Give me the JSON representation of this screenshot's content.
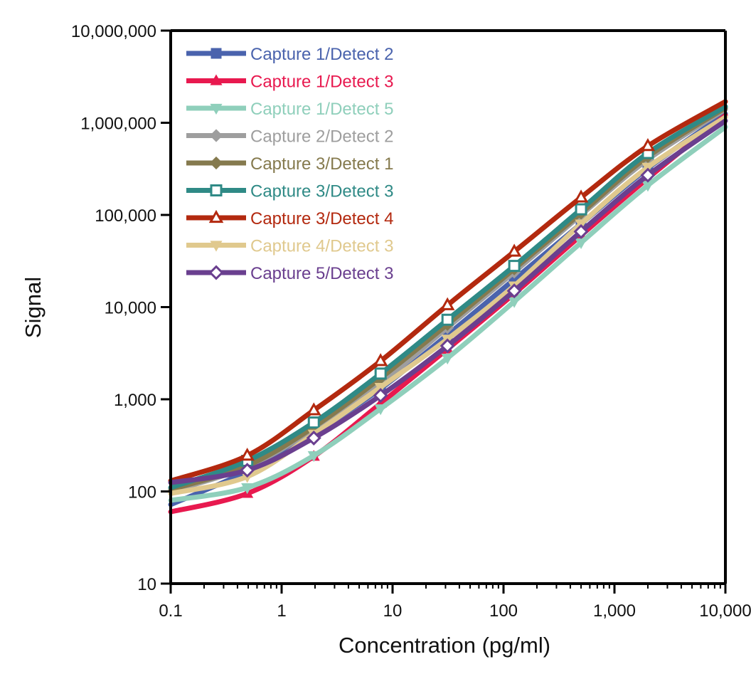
{
  "chart_data": {
    "type": "line",
    "xlabel": "Concentration (pg/ml)",
    "ylabel": "Signal",
    "xscale": "log",
    "yscale": "log",
    "xlim": [
      0.1,
      10000
    ],
    "ylim": [
      10,
      10000000
    ],
    "x_ticks": [
      {
        "value": 0.1,
        "label": "0.1"
      },
      {
        "value": 1,
        "label": "1"
      },
      {
        "value": 10,
        "label": "10"
      },
      {
        "value": 100,
        "label": "100"
      },
      {
        "value": 1000,
        "label": "1,000"
      },
      {
        "value": 10000,
        "label": "10,000"
      }
    ],
    "y_ticks": [
      {
        "value": 10,
        "label": "10"
      },
      {
        "value": 100,
        "label": "100"
      },
      {
        "value": 1000,
        "label": "1,000"
      },
      {
        "value": 10000,
        "label": "10,000"
      },
      {
        "value": 100000,
        "label": "100,000"
      },
      {
        "value": 1000000,
        "label": "1,000,000"
      },
      {
        "value": 10000000,
        "label": "10,000,000"
      }
    ],
    "legend_position": "top-left",
    "grid": false,
    "x": [
      0.1,
      0.49,
      1.95,
      7.8,
      31.25,
      125,
      500,
      2000,
      10000
    ],
    "series": [
      {
        "name": "Capture 1/Detect 2",
        "color": "#4a63ad",
        "marker": "square-filled",
        "values": [
          72,
          165,
          430,
          1300,
          5000,
          20000,
          80000,
          320000,
          1250000
        ]
      },
      {
        "name": "Capture 1/Detect 3",
        "color": "#e8194f",
        "marker": "triangle-up-filled",
        "values": [
          60,
          95,
          240,
          900,
          3500,
          14000,
          60000,
          250000,
          1200000
        ]
      },
      {
        "name": "Capture 1/Detect 5",
        "color": "#8fcfbb",
        "marker": "triangle-down-filled",
        "values": [
          80,
          110,
          245,
          790,
          2800,
          11500,
          50000,
          210000,
          900000
        ]
      },
      {
        "name": "Capture 2/Detect 2",
        "color": "#9e9e9e",
        "marker": "diamond-filled",
        "values": [
          100,
          185,
          470,
          1500,
          6000,
          24000,
          100000,
          400000,
          1400000
        ]
      },
      {
        "name": "Capture 3/Detect 1",
        "color": "#857a4e",
        "marker": "diamond-filled",
        "values": [
          105,
          190,
          500,
          1700,
          6500,
          26000,
          105000,
          430000,
          1450000
        ]
      },
      {
        "name": "Capture 3/Detect 3",
        "color": "#2f8a86",
        "marker": "square-open",
        "values": [
          110,
          215,
          560,
          1900,
          7300,
          28000,
          115000,
          470000,
          1500000
        ]
      },
      {
        "name": "Capture 3/Detect 4",
        "color": "#b3290f",
        "marker": "triangle-up-open",
        "values": [
          130,
          245,
          760,
          2600,
          10500,
          40000,
          155000,
          560000,
          1700000
        ]
      },
      {
        "name": "Capture 4/Detect 3",
        "color": "#e0c98e",
        "marker": "triangle-down-filled",
        "values": [
          95,
          145,
          420,
          1350,
          4500,
          17000,
          80000,
          330000,
          1150000
        ]
      },
      {
        "name": "Capture 5/Detect 3",
        "color": "#6a3f8f",
        "marker": "diamond-open",
        "values": [
          125,
          170,
          380,
          1100,
          3800,
          15000,
          66000,
          270000,
          1050000
        ]
      }
    ]
  }
}
